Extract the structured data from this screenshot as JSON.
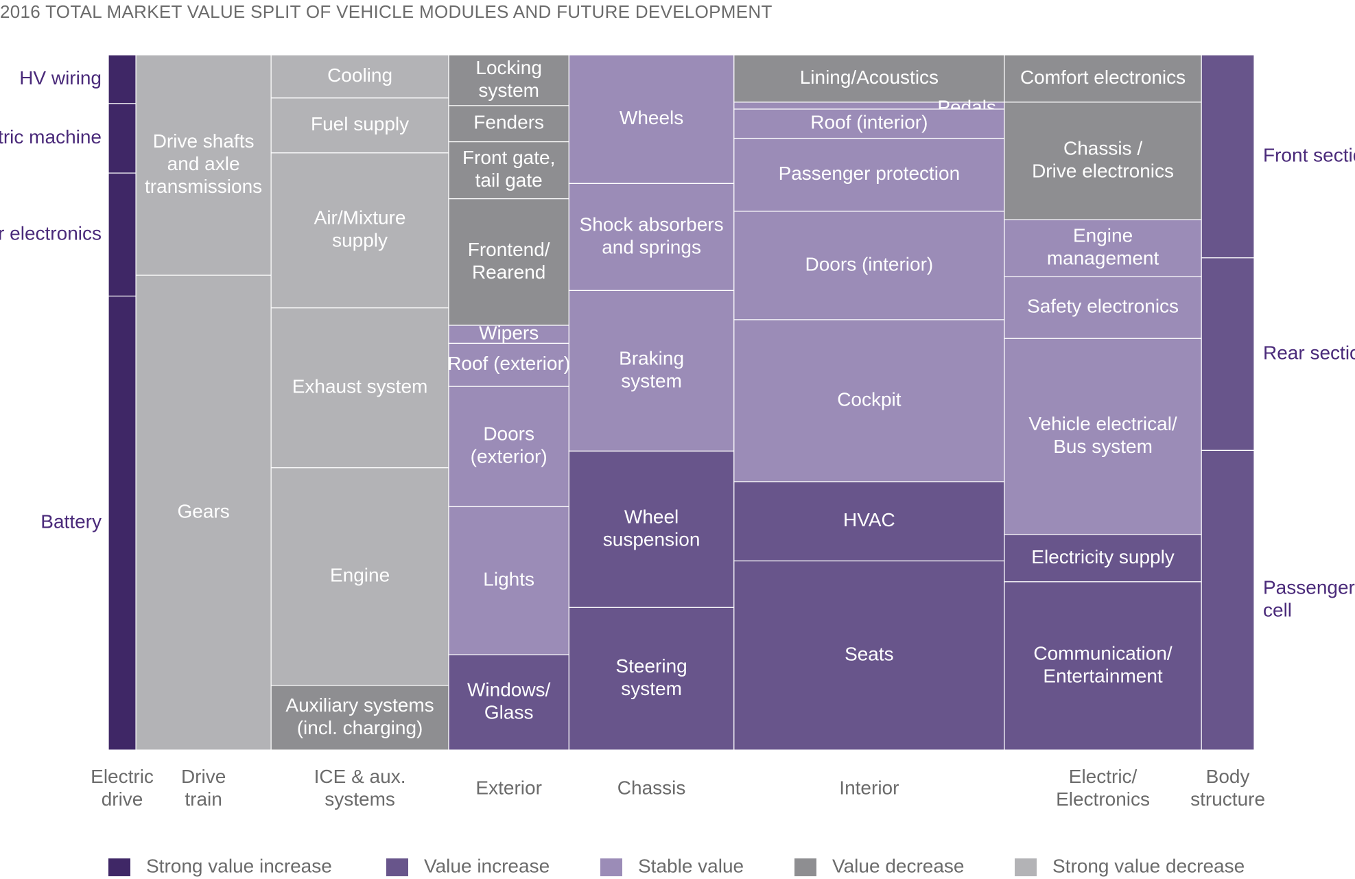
{
  "chart_data": {
    "type": "treemap",
    "title": "2016 TOTAL MARKET VALUE SPLIT OF VEHICLE MODULES AND FUTURE DEVELOPMENT",
    "colors": {
      "strong_increase": "#3f2766",
      "increase": "#68558b",
      "stable": "#9b8cb7",
      "decrease": "#8e8e91",
      "strong_decrease": "#b3b3b6"
    },
    "legend": [
      {
        "label": "Strong value increase",
        "color_key": "strong_increase"
      },
      {
        "label": "Value increase",
        "color_key": "increase"
      },
      {
        "label": "Stable value",
        "color_key": "stable"
      },
      {
        "label": "Value decrease",
        "color_key": "decrease"
      },
      {
        "label": "Strong value decrease",
        "color_key": "strong_decrease"
      }
    ],
    "columns": [
      {
        "label": "Electric\ndrive",
        "width": 0.024,
        "cells": [
          {
            "label": "HV wiring",
            "share": 0.07,
            "value": "strong_increase"
          },
          {
            "label": "Electric machine",
            "share": 0.1,
            "value": "strong_increase"
          },
          {
            "label": "Power electronics",
            "share": 0.177,
            "value": "strong_increase"
          },
          {
            "label": "Battery",
            "share": 0.653,
            "value": "strong_increase"
          }
        ]
      },
      {
        "label": "Drive\ntrain",
        "width": 0.118,
        "cells": [
          {
            "label": "Drive shafts\nand axle\ntransmissions",
            "share": 0.317,
            "value": "strong_decrease"
          },
          {
            "label": "Gears",
            "share": 0.683,
            "value": "strong_decrease"
          }
        ]
      },
      {
        "label": "ICE & aux.\nsystems",
        "width": 0.155,
        "cells": [
          {
            "label": "Cooling",
            "share": 0.062,
            "value": "strong_decrease"
          },
          {
            "label": "Fuel supply",
            "share": 0.079,
            "value": "strong_decrease"
          },
          {
            "label": "Air/Mixture\nsupply",
            "share": 0.223,
            "value": "strong_decrease"
          },
          {
            "label": "Exhaust system",
            "share": 0.23,
            "value": "strong_decrease"
          },
          {
            "label": "Engine",
            "share": 0.313,
            "value": "strong_decrease"
          },
          {
            "label": "Auxiliary systems\n(incl. charging)",
            "share": 0.093,
            "value": "decrease"
          }
        ]
      },
      {
        "label": "Exterior",
        "width": 0.105,
        "cells": [
          {
            "label": "Locking\nsystem",
            "share": 0.073,
            "value": "decrease"
          },
          {
            "label": "Fenders",
            "share": 0.052,
            "value": "decrease"
          },
          {
            "label": "Front gate,\ntail gate",
            "share": 0.082,
            "value": "decrease"
          },
          {
            "label": "Frontend/\nRearend",
            "share": 0.182,
            "value": "decrease"
          },
          {
            "label": "Wipers",
            "share": 0.026,
            "value": "stable"
          },
          {
            "label": "Roof (exterior)",
            "share": 0.062,
            "value": "stable"
          },
          {
            "label": "Doors\n(exterior)",
            "share": 0.173,
            "value": "stable"
          },
          {
            "label": "Lights",
            "share": 0.213,
            "value": "stable"
          },
          {
            "label": "Windows/\nGlass",
            "share": 0.137,
            "value": "increase"
          }
        ]
      },
      {
        "label": "Chassis",
        "width": 0.144,
        "cells": [
          {
            "label": "Wheels",
            "share": 0.185,
            "value": "stable"
          },
          {
            "label": "Shock absorbers\nand springs",
            "share": 0.154,
            "value": "stable"
          },
          {
            "label": "Braking\nsystem",
            "share": 0.231,
            "value": "stable"
          },
          {
            "label": "Wheel\nsuspension",
            "share": 0.225,
            "value": "increase"
          },
          {
            "label": "Steering\nsystem",
            "share": 0.205,
            "value": "increase"
          }
        ]
      },
      {
        "label": "Interior",
        "width": 0.236,
        "cells": [
          {
            "label": "Lining/Acoustics",
            "share": 0.068,
            "value": "decrease"
          },
          {
            "label": "Pedals",
            "share": 0.01,
            "value": "stable"
          },
          {
            "label": "Roof (interior)",
            "share": 0.042,
            "value": "stable"
          },
          {
            "label": "Passenger protection",
            "share": 0.105,
            "value": "stable"
          },
          {
            "label": "Doors (interior)",
            "share": 0.156,
            "value": "stable"
          },
          {
            "label": "Cockpit",
            "share": 0.233,
            "value": "stable"
          },
          {
            "label": "HVAC",
            "share": 0.114,
            "value": "increase"
          },
          {
            "label": "Seats",
            "share": 0.272,
            "value": "increase"
          }
        ]
      },
      {
        "label": "Electric/\nElectronics",
        "width": 0.172,
        "cells": [
          {
            "label": "Comfort electronics",
            "share": 0.068,
            "value": "decrease"
          },
          {
            "label": "Chassis /\nDrive electronics",
            "share": 0.169,
            "value": "decrease"
          },
          {
            "label": "Engine\nmanagement",
            "share": 0.082,
            "value": "stable"
          },
          {
            "label": "Safety electronics",
            "share": 0.089,
            "value": "stable"
          },
          {
            "label": "Vehicle electrical/\nBus system",
            "share": 0.282,
            "value": "stable"
          },
          {
            "label": "Electricity supply",
            "share": 0.068,
            "value": "increase"
          },
          {
            "label": "Communication/\nEntertainment",
            "share": 0.242,
            "value": "increase"
          }
        ]
      },
      {
        "label": "Body\nstructure",
        "width": 0.046,
        "cells": [
          {
            "label": "Front section",
            "share": 0.292,
            "value": "increase"
          },
          {
            "label": "Rear section",
            "share": 0.277,
            "value": "increase"
          },
          {
            "label": "Passenger\ncell",
            "share": 0.431,
            "value": "increase"
          }
        ]
      }
    ]
  }
}
